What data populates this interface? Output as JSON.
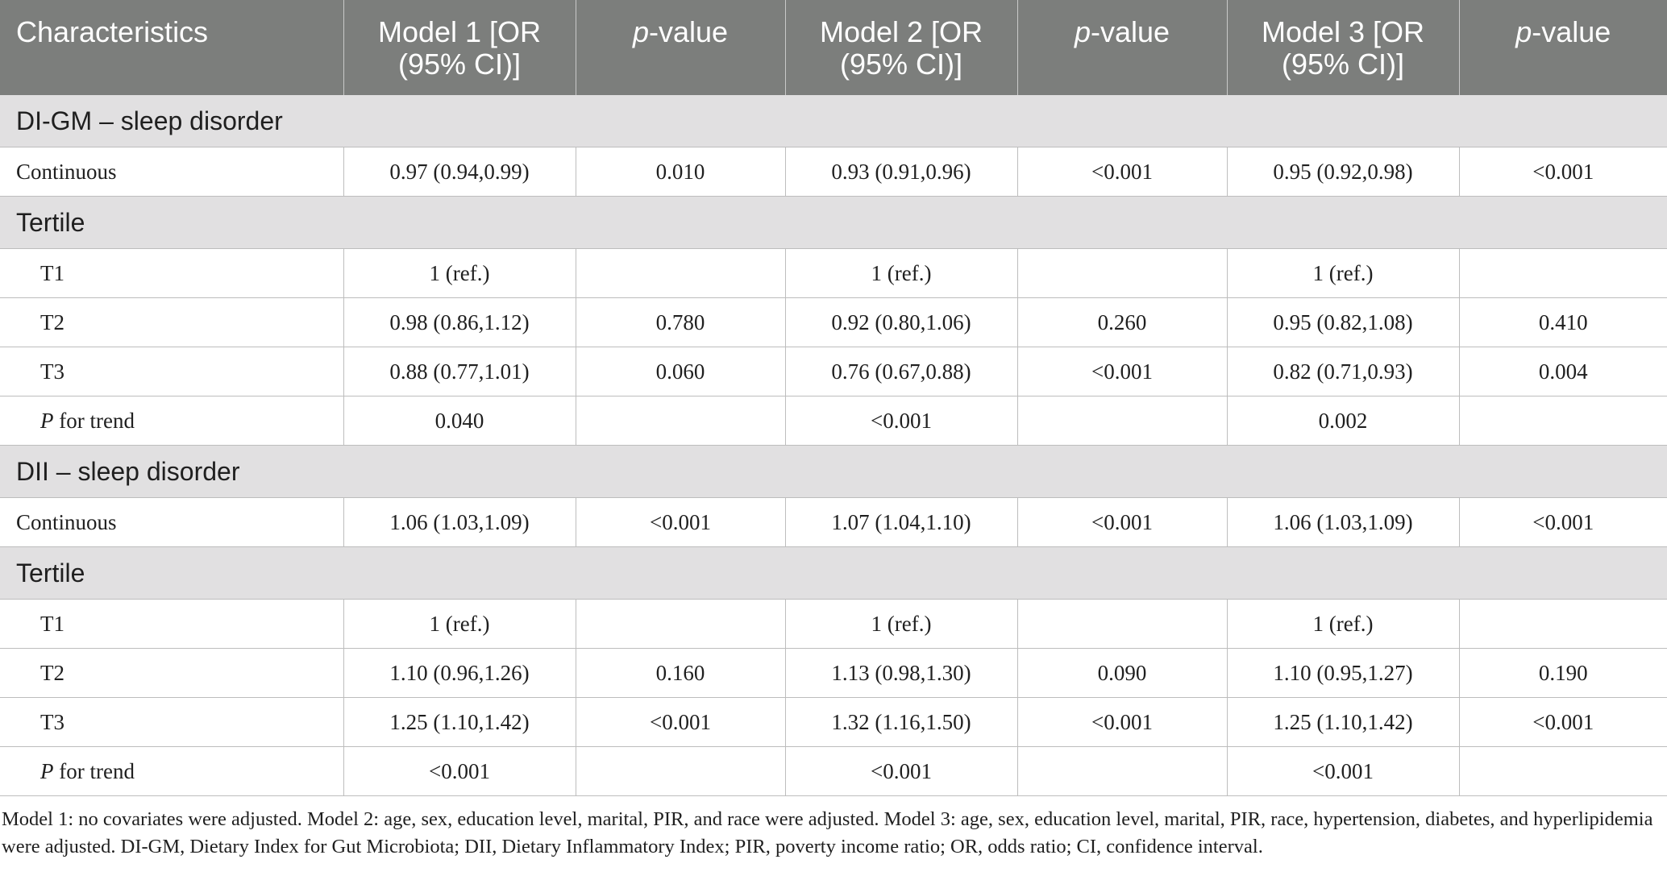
{
  "table": {
    "headers": [
      {
        "text": "Characteristics",
        "italic_prefix": "",
        "rest": ""
      },
      {
        "text": "Model 1 [OR (95% CI)]",
        "italic_prefix": "",
        "rest": ""
      },
      {
        "text": "",
        "italic_prefix": "p",
        "rest": "-value"
      },
      {
        "text": "Model 2 [OR (95% CI)]",
        "italic_prefix": "",
        "rest": ""
      },
      {
        "text": "",
        "italic_prefix": "p",
        "rest": "-value"
      },
      {
        "text": "Model 3 [OR (95% CI)]",
        "italic_prefix": "",
        "rest": ""
      },
      {
        "text": "",
        "italic_prefix": "p",
        "rest": "-value"
      }
    ],
    "header_lines": [
      [
        "Characteristics"
      ],
      [
        "Model 1 [OR",
        "(95% CI)]"
      ],
      [
        "-value"
      ],
      [
        "Model 2 [OR",
        "(95% CI)]"
      ],
      [
        "-value"
      ],
      [
        "Model 3 [OR",
        "(95% CI)]"
      ],
      [
        "-value"
      ]
    ],
    "pvalue_italic": "p",
    "section1": {
      "title": "DI-GM – sleep disorder",
      "continuous": {
        "label": "Continuous",
        "cells": [
          "0.97 (0.94,0.99)",
          "0.010",
          "0.93 (0.91,0.96)",
          "<0.001",
          "0.95 (0.92,0.98)",
          "<0.001"
        ]
      },
      "tertile_title": "Tertile",
      "t1": {
        "label": "T1",
        "cells": [
          "1 (ref.)",
          "",
          "1 (ref.)",
          "",
          "1 (ref.)",
          ""
        ]
      },
      "t2": {
        "label": "T2",
        "cells": [
          "0.98 (0.86,1.12)",
          "0.780",
          "0.92 (0.80,1.06)",
          "0.260",
          "0.95 (0.82,1.08)",
          "0.410"
        ]
      },
      "t3": {
        "label": "T3",
        "cells": [
          "0.88 (0.77,1.01)",
          "0.060",
          "0.76 (0.67,0.88)",
          "<0.001",
          "0.82 (0.71,0.93)",
          "0.004"
        ]
      },
      "trend": {
        "label_italic": "P",
        "label_rest": " for trend",
        "cells": [
          "0.040",
          "",
          "<0.001",
          "",
          "0.002",
          ""
        ]
      }
    },
    "section2": {
      "title": "DII – sleep disorder",
      "continuous": {
        "label": "Continuous",
        "cells": [
          "1.06 (1.03,1.09)",
          "<0.001",
          "1.07 (1.04,1.10)",
          "<0.001",
          "1.06 (1.03,1.09)",
          "<0.001"
        ]
      },
      "tertile_title": "Tertile",
      "t1": {
        "label": "T1",
        "cells": [
          "1 (ref.)",
          "",
          "1 (ref.)",
          "",
          "1 (ref.)",
          ""
        ]
      },
      "t2": {
        "label": "T2",
        "cells": [
          "1.10 (0.96,1.26)",
          "0.160",
          "1.13 (0.98,1.30)",
          "0.090",
          "1.10 (0.95,1.27)",
          "0.190"
        ]
      },
      "t3": {
        "label": "T3",
        "cells": [
          "1.25 (1.10,1.42)",
          "<0.001",
          "1.32 (1.16,1.50)",
          "<0.001",
          "1.25 (1.10,1.42)",
          "<0.001"
        ]
      },
      "trend": {
        "label_italic": "P",
        "label_rest": " for trend",
        "cells": [
          "<0.001",
          "",
          "<0.001",
          "",
          "<0.001",
          ""
        ]
      }
    }
  },
  "footnote": "Model 1: no covariates were adjusted. Model 2: age, sex, education level, marital, PIR, and race were adjusted. Model 3: age, sex, education level, marital, PIR, race, hypertension, diabetes, and hyperlipidemia were adjusted. DI-GM, Dietary Index for Gut Microbiota; DII, Dietary Inflammatory Index; PIR, poverty income ratio; OR, odds ratio; CI, confidence interval.",
  "colors": {
    "header_bg": "#7c7e7c",
    "section_bg": "#e1e0e1",
    "grid": "#bdbdbd"
  }
}
